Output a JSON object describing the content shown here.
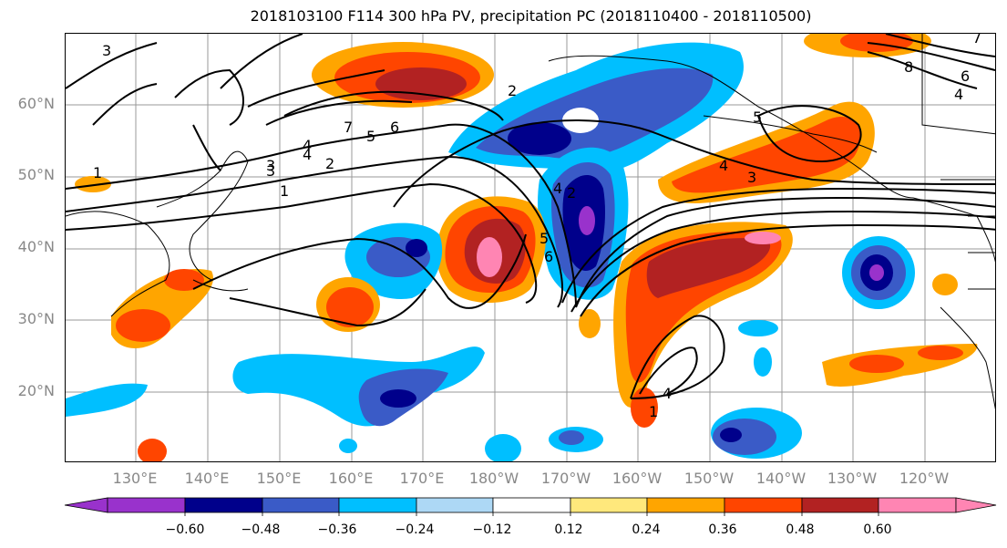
{
  "title": "2018103100 F114 300 hPa PV, precipitation PC (2018110400 - 2018110500)",
  "lat_labels": [
    "60°N",
    "50°N",
    "40°N",
    "30°N",
    "20°N"
  ],
  "lon_labels": [
    "130°E",
    "140°E",
    "150°E",
    "160°E",
    "170°E",
    "180°W",
    "170°W",
    "160°W",
    "150°W",
    "140°W",
    "130°W",
    "120°W"
  ],
  "contour_labels": [
    "3",
    "1",
    "3",
    "2",
    "4",
    "7",
    "5",
    "6",
    "4",
    "3",
    "1",
    "2",
    "5",
    "6",
    "4",
    "4",
    "3",
    "5",
    "6",
    "4",
    "7",
    "8",
    "4",
    "2",
    "1"
  ],
  "colorbar": {
    "ticks": [
      "−0.60",
      "−0.48",
      "−0.36",
      "−0.24",
      "−0.12",
      "0.12",
      "0.24",
      "0.36",
      "0.48",
      "0.60"
    ],
    "colors": [
      "#9932cc",
      "#00008b",
      "#3a5bc7",
      "#00bfff",
      "#add8f5",
      "#ffffff",
      "#ffe87c",
      "#ffa500",
      "#ff4500",
      "#b22222",
      "#ff85b3",
      "#ff85b3"
    ]
  },
  "colors": {
    "neg_extreme": "#9932cc",
    "neg_strong": "#00008b",
    "neg_mid": "#3a5bc7",
    "neg_light": "#00bfff",
    "neg_faint": "#add8f5",
    "pos_faint": "#ffe87c",
    "pos_light": "#ffa500",
    "pos_mid": "#ff4500",
    "pos_strong": "#b22222",
    "pos_extreme": "#ff85b3"
  }
}
